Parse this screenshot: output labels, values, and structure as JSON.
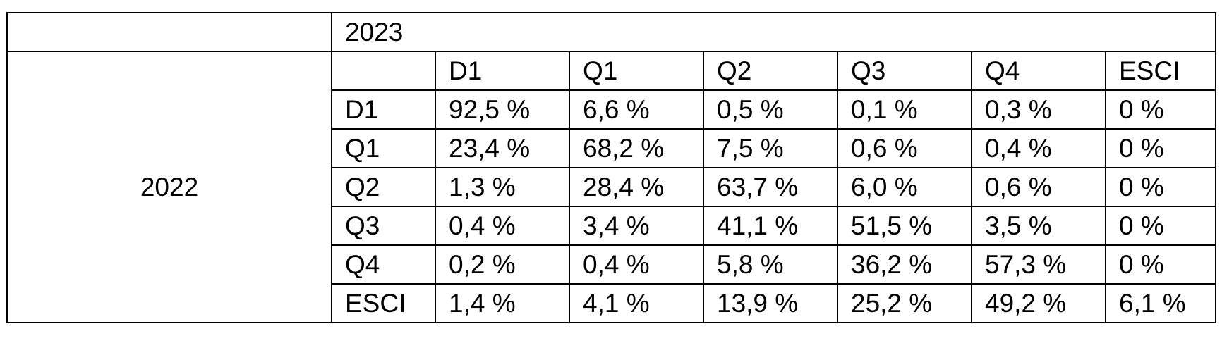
{
  "table": {
    "column_year": "2023",
    "row_year": "2022",
    "columns": [
      "D1",
      "Q1",
      "Q2",
      "Q3",
      "Q4",
      "ESCI"
    ],
    "rows": [
      {
        "label": "D1",
        "cells": [
          "92,5 %",
          "6,6 %",
          "0,5 %",
          "0,1 %",
          "0,3 %",
          "0 %"
        ]
      },
      {
        "label": "Q1",
        "cells": [
          "23,4 %",
          "68,2 %",
          "7,5 %",
          "0,6 %",
          "0,4 %",
          "0 %"
        ]
      },
      {
        "label": "Q2",
        "cells": [
          "1,3 %",
          "28,4 %",
          "63,7 %",
          "6,0 %",
          "0,6 %",
          "0 %"
        ]
      },
      {
        "label": "Q3",
        "cells": [
          "0,4 %",
          "3,4 %",
          "41,1 %",
          "51,5 %",
          "3,5 %",
          "0 %"
        ]
      },
      {
        "label": "Q4",
        "cells": [
          "0,2 %",
          "0,4 %",
          "5,8 %",
          "36,2 %",
          "57,3 %",
          "0 %"
        ]
      },
      {
        "label": "ESCI",
        "cells": [
          "1,4 %",
          "4,1 %",
          "13,9 %",
          "25,2 %",
          "49,2 %",
          "6,1 %"
        ]
      }
    ]
  }
}
